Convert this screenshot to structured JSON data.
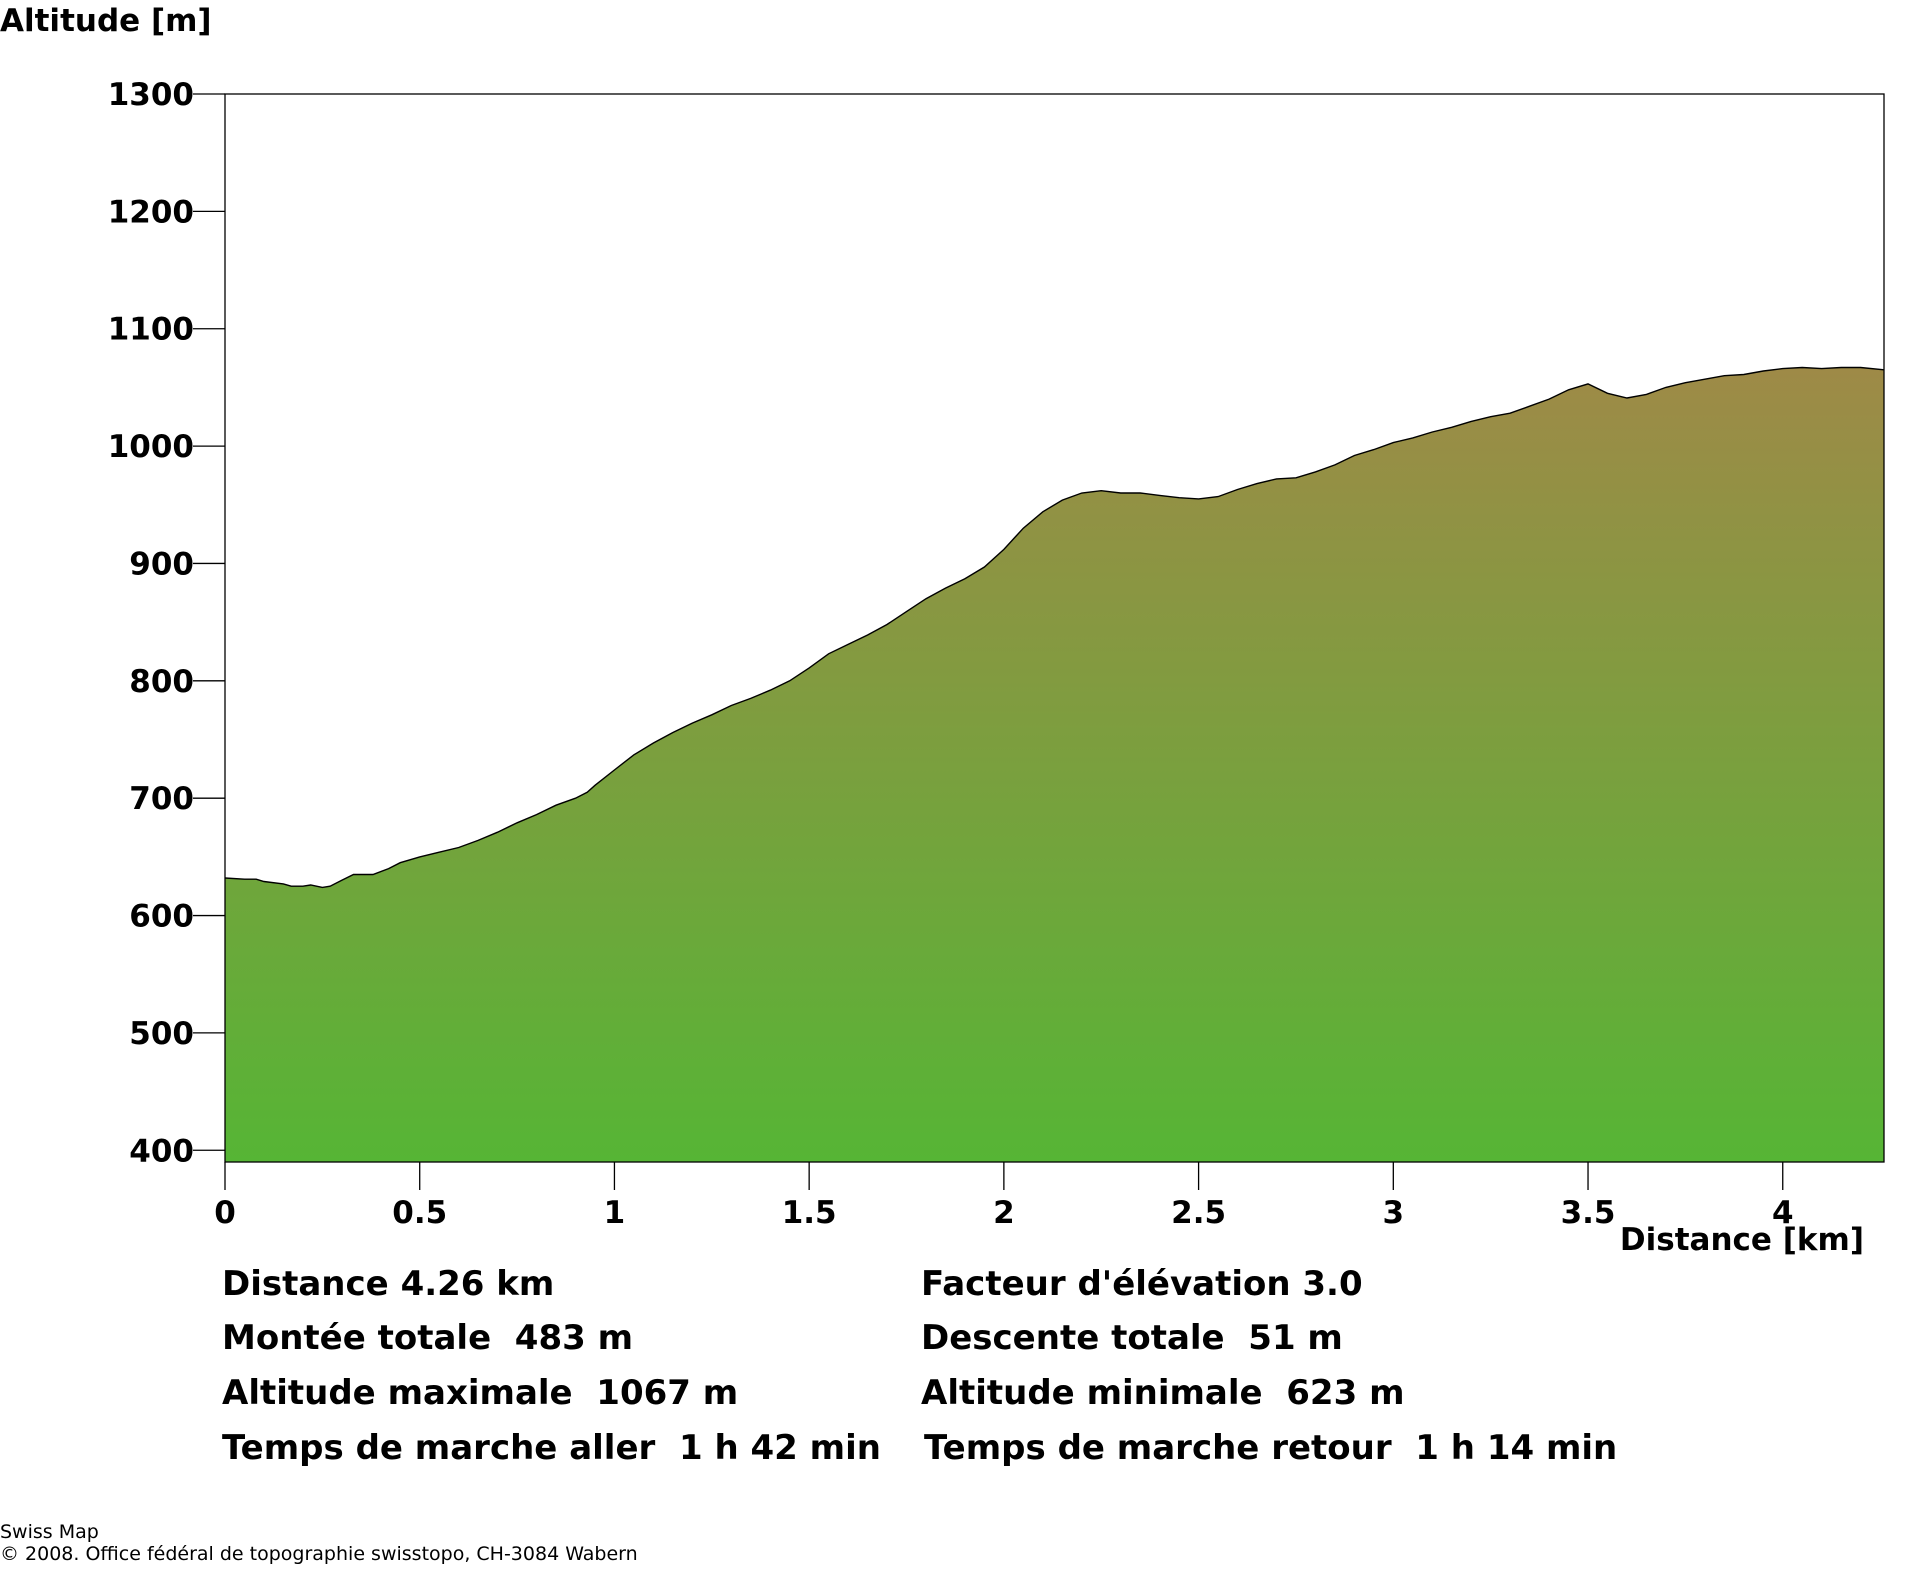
{
  "chart_data": {
    "type": "area",
    "title": "",
    "xlabel": "Distance [km]",
    "ylabel": "Altitude [m]",
    "xlim": [
      0,
      4.26
    ],
    "ylim": [
      390,
      1300
    ],
    "x_ticks": [
      "0",
      "0.5",
      "1",
      "1.5",
      "2",
      "2.5",
      "3",
      "3.5",
      "4"
    ],
    "y_ticks": [
      "400",
      "500",
      "600",
      "700",
      "800",
      "900",
      "1000",
      "1100",
      "1200",
      "1300"
    ],
    "grid": false,
    "legend": "none",
    "fill_gradient": {
      "top": "#9e8a47",
      "bottom": "#56b535"
    },
    "series": [
      {
        "x": [
          0,
          0.05,
          0.08,
          0.1,
          0.15,
          0.17,
          0.2,
          0.22,
          0.25,
          0.27,
          0.3,
          0.33,
          0.35,
          0.38,
          0.42,
          0.45,
          0.5,
          0.55,
          0.6,
          0.65,
          0.7,
          0.75,
          0.8,
          0.85,
          0.9,
          0.93,
          0.95,
          1.0,
          1.05,
          1.1,
          1.15,
          1.2,
          1.25,
          1.3,
          1.35,
          1.4,
          1.45,
          1.5,
          1.55,
          1.6,
          1.65,
          1.7,
          1.75,
          1.8,
          1.85,
          1.9,
          1.95,
          2.0,
          2.05,
          2.1,
          2.15,
          2.2,
          2.25,
          2.3,
          2.35,
          2.4,
          2.45,
          2.5,
          2.55,
          2.6,
          2.65,
          2.7,
          2.75,
          2.8,
          2.85,
          2.9,
          2.95,
          3.0,
          3.05,
          3.1,
          3.15,
          3.2,
          3.25,
          3.3,
          3.35,
          3.4,
          3.45,
          3.5,
          3.55,
          3.6,
          3.65,
          3.7,
          3.75,
          3.8,
          3.85,
          3.9,
          3.95,
          4.0,
          4.05,
          4.1,
          4.15,
          4.2,
          4.26
        ],
        "y": [
          632,
          631,
          631,
          629,
          627,
          625,
          625,
          626,
          624,
          625,
          630,
          635,
          635,
          635,
          640,
          645,
          650,
          654,
          658,
          664,
          671,
          679,
          686,
          694,
          700,
          705,
          711,
          724,
          737,
          747,
          756,
          764,
          771,
          779,
          785,
          792,
          800,
          811,
          823,
          831,
          839,
          848,
          859,
          870,
          879,
          887,
          897,
          912,
          930,
          944,
          954,
          960,
          962,
          960,
          960,
          958,
          956,
          955,
          957,
          963,
          968,
          972,
          973,
          978,
          984,
          992,
          997,
          1003,
          1007,
          1012,
          1016,
          1021,
          1025,
          1028,
          1034,
          1040,
          1048,
          1053,
          1045,
          1041,
          1044,
          1050,
          1054,
          1057,
          1060,
          1061,
          1064,
          1066,
          1067,
          1066,
          1067,
          1067,
          1065
        ]
      }
    ]
  },
  "stats": {
    "distance": "Distance 4.26 km",
    "elevation_factor": "Facteur d'élévation 3.0",
    "total_ascent": "Montée totale  483 m",
    "total_descent": "Descente totale  51 m",
    "max_altitude": "Altitude maximale  1067 m",
    "min_altitude": "Altitude minimale  623 m",
    "time_outbound": "Temps de marche aller  1 h 42 min",
    "time_return": "Temps de marche retour  1 h 14 min"
  },
  "credit": {
    "line1": "Swiss Map",
    "line2": "© 2008. Office fédéral de topographie swisstopo, CH-3084 Wabern"
  }
}
